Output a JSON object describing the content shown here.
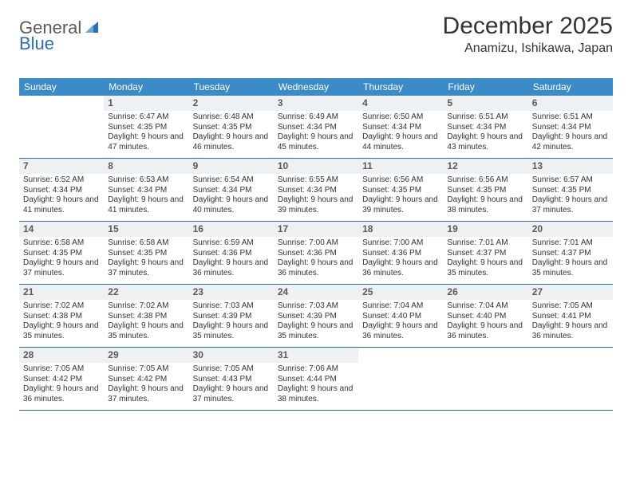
{
  "brand": {
    "general": "General",
    "blue": "Blue"
  },
  "title": "December 2025",
  "location": "Anamizu, Ishikawa, Japan",
  "colors": {
    "header_bg": "#3b8bc9",
    "daynum_bg": "#eef1f4",
    "rule": "#2d6fb4",
    "text": "#333333"
  },
  "dow": [
    "Sunday",
    "Monday",
    "Tuesday",
    "Wednesday",
    "Thursday",
    "Friday",
    "Saturday"
  ],
  "weeks": [
    [
      {
        "n": "",
        "sr": "",
        "ss": "",
        "dl": ""
      },
      {
        "n": "1",
        "sr": "Sunrise: 6:47 AM",
        "ss": "Sunset: 4:35 PM",
        "dl": "Daylight: 9 hours and 47 minutes."
      },
      {
        "n": "2",
        "sr": "Sunrise: 6:48 AM",
        "ss": "Sunset: 4:35 PM",
        "dl": "Daylight: 9 hours and 46 minutes."
      },
      {
        "n": "3",
        "sr": "Sunrise: 6:49 AM",
        "ss": "Sunset: 4:34 PM",
        "dl": "Daylight: 9 hours and 45 minutes."
      },
      {
        "n": "4",
        "sr": "Sunrise: 6:50 AM",
        "ss": "Sunset: 4:34 PM",
        "dl": "Daylight: 9 hours and 44 minutes."
      },
      {
        "n": "5",
        "sr": "Sunrise: 6:51 AM",
        "ss": "Sunset: 4:34 PM",
        "dl": "Daylight: 9 hours and 43 minutes."
      },
      {
        "n": "6",
        "sr": "Sunrise: 6:51 AM",
        "ss": "Sunset: 4:34 PM",
        "dl": "Daylight: 9 hours and 42 minutes."
      }
    ],
    [
      {
        "n": "7",
        "sr": "Sunrise: 6:52 AM",
        "ss": "Sunset: 4:34 PM",
        "dl": "Daylight: 9 hours and 41 minutes."
      },
      {
        "n": "8",
        "sr": "Sunrise: 6:53 AM",
        "ss": "Sunset: 4:34 PM",
        "dl": "Daylight: 9 hours and 41 minutes."
      },
      {
        "n": "9",
        "sr": "Sunrise: 6:54 AM",
        "ss": "Sunset: 4:34 PM",
        "dl": "Daylight: 9 hours and 40 minutes."
      },
      {
        "n": "10",
        "sr": "Sunrise: 6:55 AM",
        "ss": "Sunset: 4:34 PM",
        "dl": "Daylight: 9 hours and 39 minutes."
      },
      {
        "n": "11",
        "sr": "Sunrise: 6:56 AM",
        "ss": "Sunset: 4:35 PM",
        "dl": "Daylight: 9 hours and 39 minutes."
      },
      {
        "n": "12",
        "sr": "Sunrise: 6:56 AM",
        "ss": "Sunset: 4:35 PM",
        "dl": "Daylight: 9 hours and 38 minutes."
      },
      {
        "n": "13",
        "sr": "Sunrise: 6:57 AM",
        "ss": "Sunset: 4:35 PM",
        "dl": "Daylight: 9 hours and 37 minutes."
      }
    ],
    [
      {
        "n": "14",
        "sr": "Sunrise: 6:58 AM",
        "ss": "Sunset: 4:35 PM",
        "dl": "Daylight: 9 hours and 37 minutes."
      },
      {
        "n": "15",
        "sr": "Sunrise: 6:58 AM",
        "ss": "Sunset: 4:35 PM",
        "dl": "Daylight: 9 hours and 37 minutes."
      },
      {
        "n": "16",
        "sr": "Sunrise: 6:59 AM",
        "ss": "Sunset: 4:36 PM",
        "dl": "Daylight: 9 hours and 36 minutes."
      },
      {
        "n": "17",
        "sr": "Sunrise: 7:00 AM",
        "ss": "Sunset: 4:36 PM",
        "dl": "Daylight: 9 hours and 36 minutes."
      },
      {
        "n": "18",
        "sr": "Sunrise: 7:00 AM",
        "ss": "Sunset: 4:36 PM",
        "dl": "Daylight: 9 hours and 36 minutes."
      },
      {
        "n": "19",
        "sr": "Sunrise: 7:01 AM",
        "ss": "Sunset: 4:37 PM",
        "dl": "Daylight: 9 hours and 35 minutes."
      },
      {
        "n": "20",
        "sr": "Sunrise: 7:01 AM",
        "ss": "Sunset: 4:37 PM",
        "dl": "Daylight: 9 hours and 35 minutes."
      }
    ],
    [
      {
        "n": "21",
        "sr": "Sunrise: 7:02 AM",
        "ss": "Sunset: 4:38 PM",
        "dl": "Daylight: 9 hours and 35 minutes."
      },
      {
        "n": "22",
        "sr": "Sunrise: 7:02 AM",
        "ss": "Sunset: 4:38 PM",
        "dl": "Daylight: 9 hours and 35 minutes."
      },
      {
        "n": "23",
        "sr": "Sunrise: 7:03 AM",
        "ss": "Sunset: 4:39 PM",
        "dl": "Daylight: 9 hours and 35 minutes."
      },
      {
        "n": "24",
        "sr": "Sunrise: 7:03 AM",
        "ss": "Sunset: 4:39 PM",
        "dl": "Daylight: 9 hours and 35 minutes."
      },
      {
        "n": "25",
        "sr": "Sunrise: 7:04 AM",
        "ss": "Sunset: 4:40 PM",
        "dl": "Daylight: 9 hours and 36 minutes."
      },
      {
        "n": "26",
        "sr": "Sunrise: 7:04 AM",
        "ss": "Sunset: 4:40 PM",
        "dl": "Daylight: 9 hours and 36 minutes."
      },
      {
        "n": "27",
        "sr": "Sunrise: 7:05 AM",
        "ss": "Sunset: 4:41 PM",
        "dl": "Daylight: 9 hours and 36 minutes."
      }
    ],
    [
      {
        "n": "28",
        "sr": "Sunrise: 7:05 AM",
        "ss": "Sunset: 4:42 PM",
        "dl": "Daylight: 9 hours and 36 minutes."
      },
      {
        "n": "29",
        "sr": "Sunrise: 7:05 AM",
        "ss": "Sunset: 4:42 PM",
        "dl": "Daylight: 9 hours and 37 minutes."
      },
      {
        "n": "30",
        "sr": "Sunrise: 7:05 AM",
        "ss": "Sunset: 4:43 PM",
        "dl": "Daylight: 9 hours and 37 minutes."
      },
      {
        "n": "31",
        "sr": "Sunrise: 7:06 AM",
        "ss": "Sunset: 4:44 PM",
        "dl": "Daylight: 9 hours and 38 minutes."
      },
      {
        "n": "",
        "sr": "",
        "ss": "",
        "dl": ""
      },
      {
        "n": "",
        "sr": "",
        "ss": "",
        "dl": ""
      },
      {
        "n": "",
        "sr": "",
        "ss": "",
        "dl": ""
      }
    ]
  ]
}
